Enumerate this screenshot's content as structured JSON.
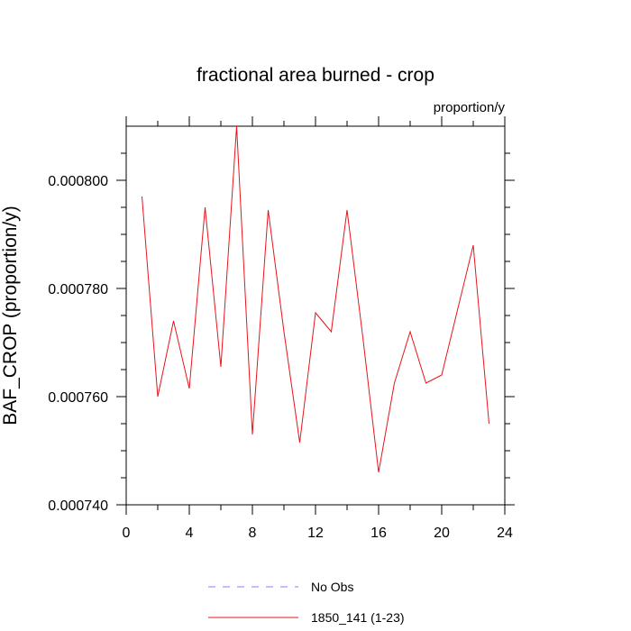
{
  "chart_data": {
    "type": "line",
    "title": "fractional area burned - crop",
    "units_label": "proportion/y",
    "ylabel": "BAF_CROP  (proportion/y)",
    "xlabel": "",
    "xlim": [
      0,
      24
    ],
    "ylim": [
      0.00074,
      0.00081
    ],
    "x_ticks": [
      0,
      4,
      8,
      12,
      16,
      20,
      24
    ],
    "x_tick_labels": [
      "0",
      "4",
      "8",
      "12",
      "16",
      "20",
      "24"
    ],
    "y_ticks": [
      0.00074,
      0.00076,
      0.00078,
      0.0008
    ],
    "y_tick_labels": [
      "0.000740",
      "0.000760",
      "0.000780",
      "0.000800"
    ],
    "grid": false,
    "legend_position": "bottom",
    "series": [
      {
        "name": "1850_141 (1-23)",
        "color": "#e8141b",
        "x": [
          1,
          2,
          3,
          4,
          5,
          6,
          7,
          8,
          9,
          10,
          11,
          12,
          13,
          14,
          15,
          16,
          17,
          18,
          19,
          20,
          21,
          22,
          23
        ],
        "values": [
          0.000797,
          0.00076,
          0.000774,
          0.0007615,
          0.000795,
          0.0007655,
          0.00081,
          0.000753,
          0.0007945,
          0.000772,
          0.0007515,
          0.0007755,
          0.000772,
          0.0007945,
          0.000771,
          0.000746,
          0.0007625,
          0.000772,
          0.0007625,
          0.000764,
          0.000776,
          0.000788,
          0.000755
        ]
      }
    ],
    "legend": [
      {
        "label": "No Obs",
        "color": "#8080ff",
        "style": "dashed"
      },
      {
        "label": "1850_141 (1-23)",
        "color": "#e8141b",
        "style": "solid"
      }
    ]
  }
}
